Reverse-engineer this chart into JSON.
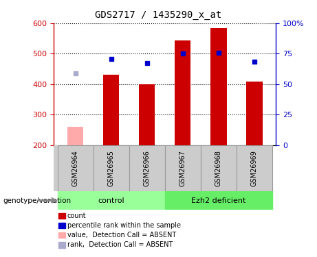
{
  "title": "GDS2717 / 1435290_x_at",
  "samples": [
    "GSM26964",
    "GSM26965",
    "GSM26966",
    "GSM26967",
    "GSM26968",
    "GSM26969"
  ],
  "bar_values": [
    null,
    430,
    400,
    543,
    583,
    408
  ],
  "bar_absent": [
    260,
    null,
    null,
    null,
    null,
    null
  ],
  "rank_values": [
    null,
    483,
    470,
    500,
    503,
    474
  ],
  "rank_absent": [
    435,
    null,
    null,
    null,
    null,
    null
  ],
  "ylim_left": [
    200,
    600
  ],
  "ylim_right": [
    0,
    100
  ],
  "yticks_left": [
    200,
    300,
    400,
    500,
    600
  ],
  "yticks_right": [
    0,
    25,
    50,
    75,
    100
  ],
  "bar_color": "#cc0000",
  "bar_absent_color": "#ffaaaa",
  "rank_color": "#0000cc",
  "rank_absent_color": "#aaaacc",
  "control_color": "#99ff99",
  "ezh2_color": "#66ee66",
  "label_bg_color": "#cccccc",
  "group_label": "genotype/variation",
  "legend_items": [
    {
      "label": "count",
      "color": "#cc0000"
    },
    {
      "label": "percentile rank within the sample",
      "color": "#0000cc"
    },
    {
      "label": "value,  Detection Call = ABSENT",
      "color": "#ffaaaa"
    },
    {
      "label": "rank,  Detection Call = ABSENT",
      "color": "#aaaacc"
    }
  ],
  "background_color": "#ffffff",
  "left_axis_color": "#cc0000",
  "right_axis_color": "#0000cc"
}
